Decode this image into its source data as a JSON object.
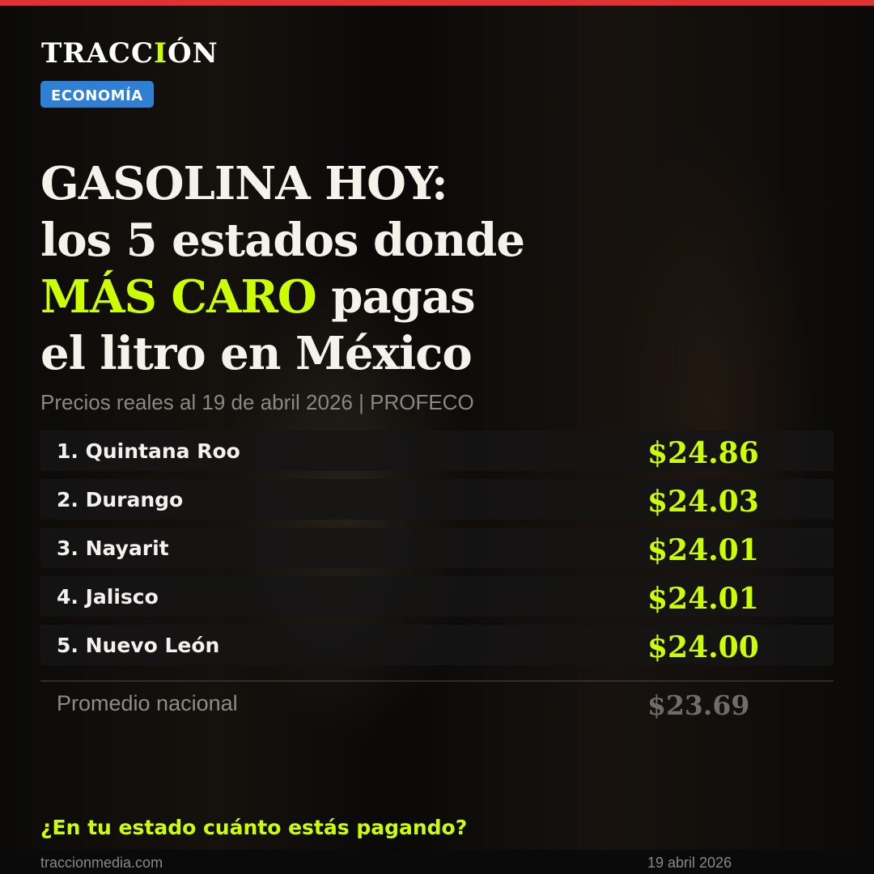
{
  "brand": {
    "logo_pre": "TRACC",
    "logo_hl": "I",
    "logo_post": "ÓN",
    "section": "ECONOMÍA"
  },
  "title": {
    "line1": "GASOLINA HOY:",
    "line2": "los 5 estados donde",
    "line3_hl": "MÁS CARO",
    "line3_rest": " pagas",
    "line4": "el litro en México"
  },
  "subtitle": "Precios reales al 19 de abril 2026 | PROFECO",
  "ranking": [
    {
      "name": "1. Quintana Roo",
      "price": "$24.86"
    },
    {
      "name": "2. Durango",
      "price": "$24.03"
    },
    {
      "name": "3. Nayarit",
      "price": "$24.01"
    },
    {
      "name": "4. Jalisco",
      "price": "$24.01"
    },
    {
      "name": "5. Nuevo León",
      "price": "$24.00"
    }
  ],
  "average": {
    "label": "Promedio nacional",
    "price": "$23.69"
  },
  "cta": "¿En tu estado cuánto estás pagando?",
  "footer": {
    "site": "traccionmedia.com",
    "date": "19 abril 2026"
  },
  "colors": {
    "accent": "#ccff00",
    "badge": "#2f7fd4",
    "topbar": "#e03232"
  }
}
